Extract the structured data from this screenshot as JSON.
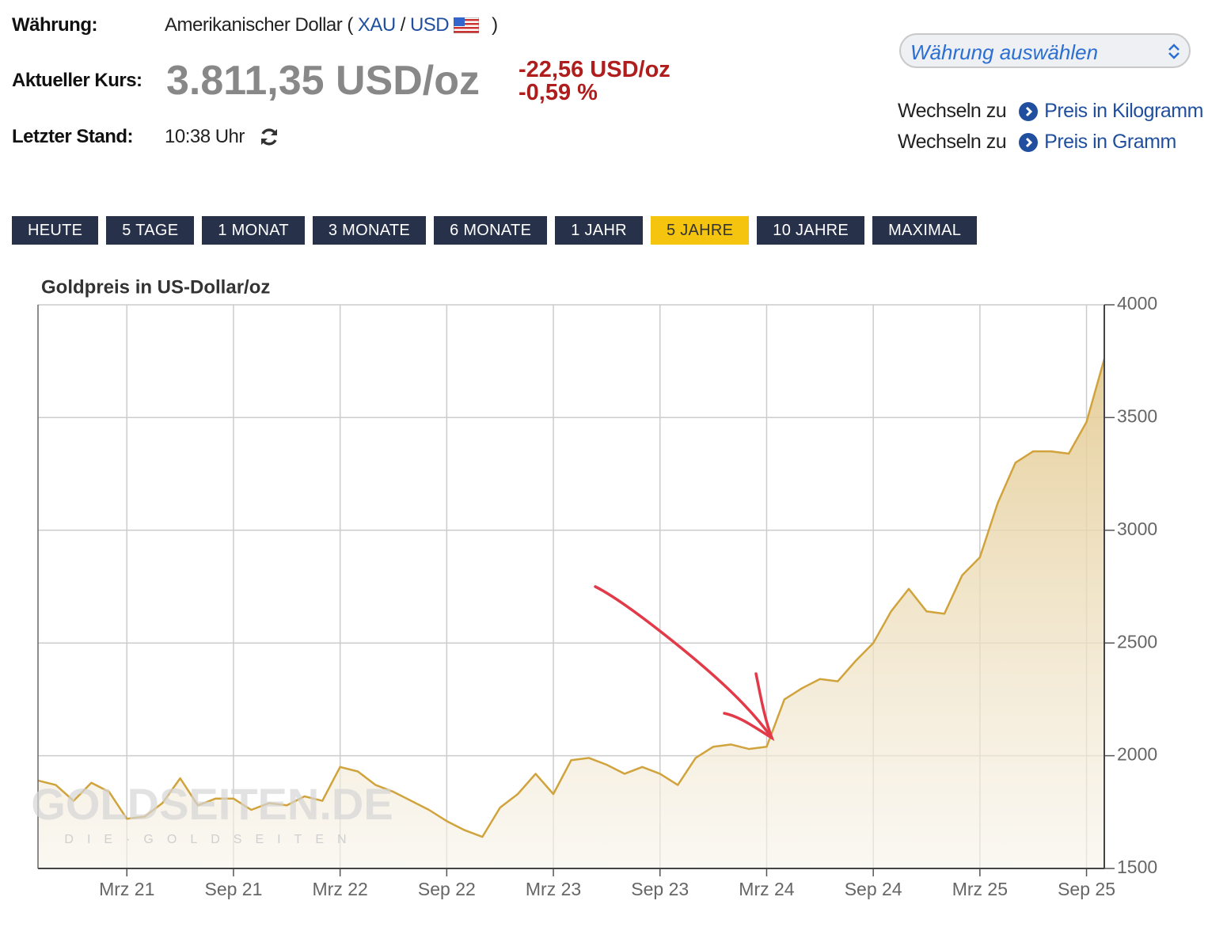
{
  "header": {
    "currency_label": "Währung:",
    "currency_name": "Amerikanischer Dollar (",
    "currency_base": "XAU",
    "currency_slash": "/",
    "currency_quote": "USD",
    "currency_close": ")",
    "price_label": "Aktueller Kurs:",
    "price": "3.811,35 USD/oz",
    "change_abs": "-22,56 USD/oz",
    "change_pct": "-0,59 %",
    "updated_label": "Letzter Stand:",
    "updated": "10:38 Uhr"
  },
  "currency_select": "Währung auswählen",
  "links": [
    {
      "prefix": "Wechseln zu",
      "label": "Preis in Kilogramm"
    },
    {
      "prefix": "Wechseln zu",
      "label": "Preis in Gramm"
    }
  ],
  "ranges": [
    "HEUTE",
    "5 TAGE",
    "1 MONAT",
    "3 MONATE",
    "6 MONATE",
    "1 JAHR",
    "5 JAHRE",
    "10 JAHRE",
    "MAXIMAL"
  ],
  "active_range": 6,
  "watermark": {
    "title": "GOLDSEITEN.DE",
    "subtitle": "DIE·GOLDSEITEN"
  },
  "chart_data": {
    "type": "area",
    "title": "Goldpreis in US-Dollar/oz",
    "color": "#d1a33c",
    "grid": true,
    "y_axis_side": "right",
    "x": [
      "2020-10",
      "2020-11",
      "2020-12",
      "2021-01",
      "2021-02",
      "2021-03",
      "2021-04",
      "2021-05",
      "2021-06",
      "2021-07",
      "2021-08",
      "2021-09",
      "2021-10",
      "2021-11",
      "2021-12",
      "2022-01",
      "2022-02",
      "2022-03",
      "2022-04",
      "2022-05",
      "2022-06",
      "2022-07",
      "2022-08",
      "2022-09",
      "2022-10",
      "2022-11",
      "2022-12",
      "2023-01",
      "2023-02",
      "2023-03",
      "2023-04",
      "2023-05",
      "2023-06",
      "2023-07",
      "2023-08",
      "2023-09",
      "2023-10",
      "2023-11",
      "2023-12",
      "2024-01",
      "2024-02",
      "2024-03",
      "2024-04",
      "2024-05",
      "2024-06",
      "2024-07",
      "2024-08",
      "2024-09",
      "2024-10",
      "2024-11",
      "2024-12",
      "2025-01",
      "2025-02",
      "2025-03",
      "2025-04",
      "2025-05",
      "2025-06",
      "2025-07",
      "2025-08",
      "2025-09",
      "2025-10"
    ],
    "values": [
      1890,
      1870,
      1800,
      1880,
      1840,
      1720,
      1730,
      1790,
      1900,
      1780,
      1810,
      1810,
      1760,
      1790,
      1780,
      1820,
      1800,
      1950,
      1930,
      1870,
      1840,
      1800,
      1760,
      1710,
      1670,
      1640,
      1770,
      1830,
      1920,
      1830,
      1980,
      1990,
      1960,
      1920,
      1950,
      1920,
      1870,
      1990,
      2040,
      2050,
      2030,
      2040,
      2250,
      2300,
      2340,
      2330,
      2420,
      2500,
      2640,
      2740,
      2640,
      2630,
      2800,
      2880,
      3120,
      3300,
      3350,
      3350,
      3340,
      3480,
      3760
    ],
    "xlim": [
      "2020-10",
      "2025-10"
    ],
    "xticks": [
      {
        "value": "2021-03",
        "label": "Mrz 21"
      },
      {
        "value": "2021-09",
        "label": "Sep 21"
      },
      {
        "value": "2022-03",
        "label": "Mrz 22"
      },
      {
        "value": "2022-09",
        "label": "Sep 22"
      },
      {
        "value": "2023-03",
        "label": "Mrz 23"
      },
      {
        "value": "2023-09",
        "label": "Sep 23"
      },
      {
        "value": "2024-03",
        "label": "Mrz 24"
      },
      {
        "value": "2024-09",
        "label": "Sep 24"
      },
      {
        "value": "2025-03",
        "label": "Mrz 25"
      },
      {
        "value": "2025-09",
        "label": "Sep 25"
      }
    ],
    "ylim": [
      1500,
      4000
    ],
    "yticks": [
      1500,
      2000,
      2500,
      3000,
      3500,
      4000
    ]
  }
}
